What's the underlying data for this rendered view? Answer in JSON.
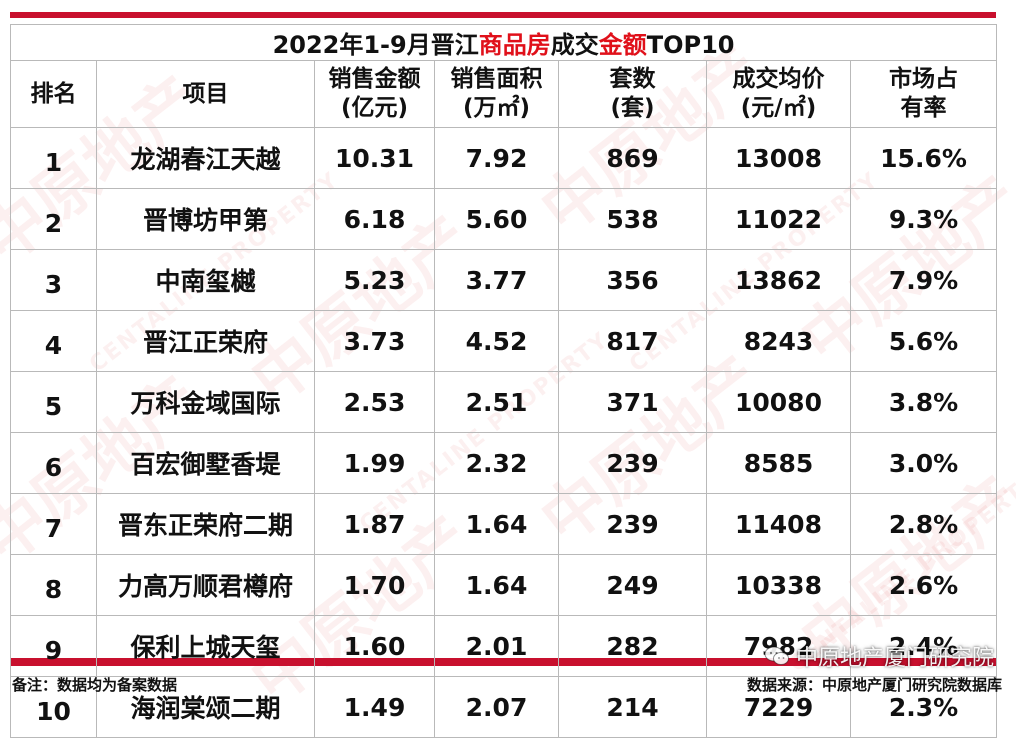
{
  "title": {
    "part1": "2022年1-9月晋江",
    "part2": "商品房",
    "part3": "成交",
    "part4": "金额",
    "part5": "TOP10"
  },
  "headers": {
    "rank": "排名",
    "project": "项目",
    "amount_1": "销售金额",
    "amount_2": "(亿元)",
    "area_1": "销售面积",
    "area_2": "(万㎡)",
    "units_1": "套数",
    "units_2": "(套)",
    "price_1": "成交均价",
    "price_2": "(元/㎡)",
    "share_1": "市场占",
    "share_2": "有率"
  },
  "rows": [
    {
      "rank": "1",
      "project": "龙湖春江天越",
      "amount": "10.31",
      "area": "7.92",
      "units": "869",
      "price": "13008",
      "share": "15.6%"
    },
    {
      "rank": "2",
      "project": "晋博坊甲第",
      "amount": "6.18",
      "area": "5.60",
      "units": "538",
      "price": "11022",
      "share": "9.3%"
    },
    {
      "rank": "3",
      "project": "中南玺樾",
      "amount": "5.23",
      "area": "3.77",
      "units": "356",
      "price": "13862",
      "share": "7.9%"
    },
    {
      "rank": "4",
      "project": "晋江正荣府",
      "amount": "3.73",
      "area": "4.52",
      "units": "817",
      "price": "8243",
      "share": "5.6%"
    },
    {
      "rank": "5",
      "project": "万科金域国际",
      "amount": "2.53",
      "area": "2.51",
      "units": "371",
      "price": "10080",
      "share": "3.8%"
    },
    {
      "rank": "6",
      "project": "百宏御墅香堤",
      "amount": "1.99",
      "area": "2.32",
      "units": "239",
      "price": "8585",
      "share": "3.0%"
    },
    {
      "rank": "7",
      "project": "晋东正荣府二期",
      "amount": "1.87",
      "area": "1.64",
      "units": "239",
      "price": "11408",
      "share": "2.8%"
    },
    {
      "rank": "8",
      "project": "力高万顺君樽府",
      "amount": "1.70",
      "area": "1.64",
      "units": "249",
      "price": "10338",
      "share": "2.6%"
    },
    {
      "rank": "9",
      "project": "保利上城天玺",
      "amount": "1.60",
      "area": "2.01",
      "units": "282",
      "price": "7982",
      "share": "2.4%"
    },
    {
      "rank": "10",
      "project": "海润棠颂二期",
      "amount": "1.49",
      "area": "2.07",
      "units": "214",
      "price": "7229",
      "share": "2.3%"
    }
  ],
  "footer": {
    "note": "备注：数据均为备案数据",
    "source": "数据来源：中原地产厦门研究院数据库",
    "wechat_label": "中原地产厦门研究院"
  },
  "watermark": {
    "logo_text": "中原地产",
    "brand_text": "CENTALINE PROPERTY"
  },
  "colors": {
    "accent_red": "#c8102e",
    "title_red": "#e0101a"
  },
  "icons": [
    "wechat-icon"
  ]
}
